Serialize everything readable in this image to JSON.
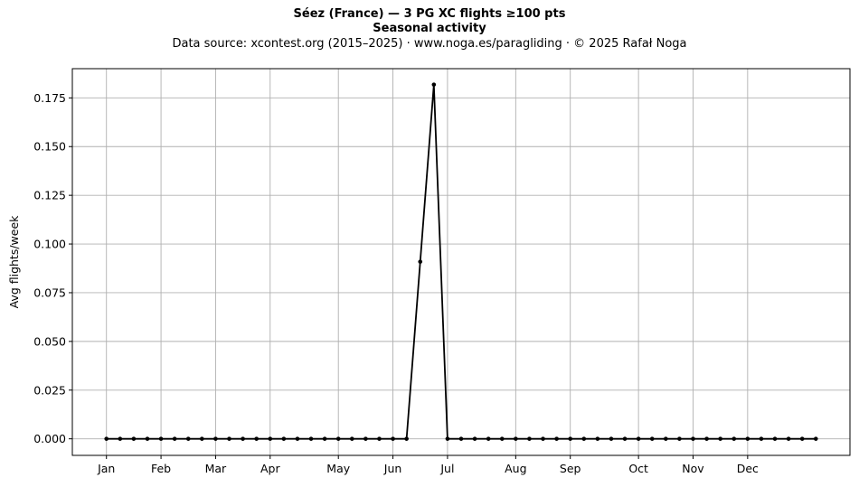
{
  "chart_data": {
    "type": "line",
    "title": "Séez (France)  —  3 PG XC flights ≥100 pts",
    "subtitle": "Seasonal activity",
    "source_line": "Data source: xcontest.org (2015–2025)  ·  www.noga.es/paragliding  ·  © 2025 Rafał Noga",
    "xlabel": "",
    "ylabel": "Avg flights/week",
    "ylim": [
      -0.0085,
      0.19
    ],
    "xlim": [
      -2.5,
      54.5
    ],
    "grid": true,
    "line_color": "#000000",
    "grid_color": "#b0b0b0",
    "x_ticks": [
      {
        "x": 0,
        "label": "Jan"
      },
      {
        "x": 4,
        "label": "Feb"
      },
      {
        "x": 8,
        "label": "Mar"
      },
      {
        "x": 12,
        "label": "Apr"
      },
      {
        "x": 17,
        "label": "May"
      },
      {
        "x": 21,
        "label": "Jun"
      },
      {
        "x": 25,
        "label": "Jul"
      },
      {
        "x": 30,
        "label": "Aug"
      },
      {
        "x": 34,
        "label": "Sep"
      },
      {
        "x": 39,
        "label": "Oct"
      },
      {
        "x": 43,
        "label": "Nov"
      },
      {
        "x": 47,
        "label": "Dec"
      }
    ],
    "y_ticks": [
      "0.000",
      "0.025",
      "0.050",
      "0.075",
      "0.100",
      "0.125",
      "0.150",
      "0.175"
    ],
    "series": [
      {
        "values": [
          0,
          0,
          0,
          0,
          0,
          0,
          0,
          0,
          0,
          0,
          0,
          0,
          0,
          0,
          0,
          0,
          0,
          0,
          0,
          0,
          0,
          0,
          0,
          0.0909,
          0.1818,
          0,
          0,
          0,
          0,
          0,
          0,
          0,
          0,
          0,
          0,
          0,
          0,
          0,
          0,
          0,
          0,
          0,
          0,
          0,
          0,
          0,
          0,
          0,
          0,
          0,
          0,
          0,
          0
        ]
      }
    ]
  }
}
